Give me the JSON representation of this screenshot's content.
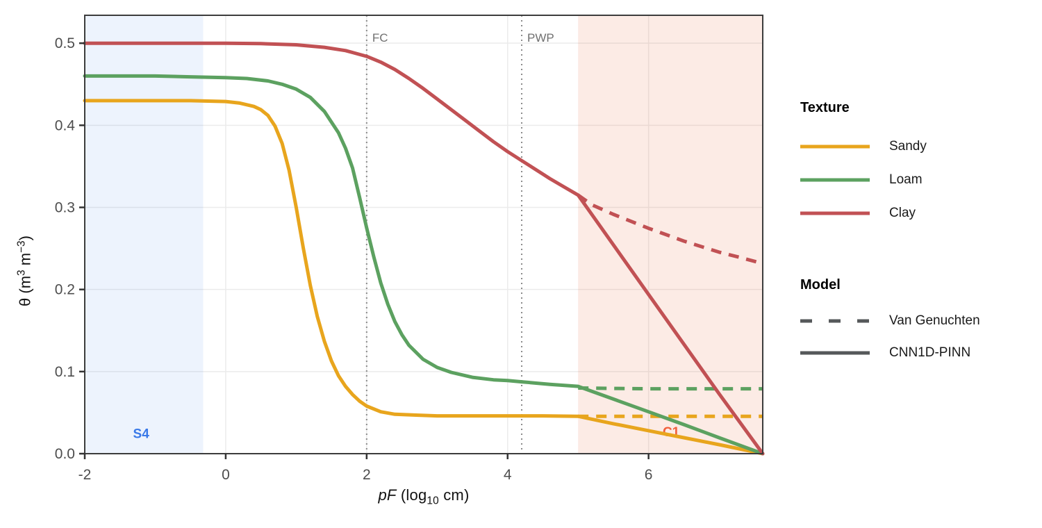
{
  "colors": {
    "background": "#ffffff",
    "panel_border": "#3c3c3c",
    "gridline": "#ebebeb",
    "tick_mark": "#333333",
    "tick_label": "#4d4d4d",
    "axis_title": "#111111",
    "sandy": "#e8a51d",
    "loam": "#5ca160",
    "clay": "#c15154",
    "model_key": "#55585a",
    "refline": "#8a8a8a",
    "refline_label": "#707070",
    "region_blue_base": "#3a79e8",
    "region_orange_base": "#e8622c"
  },
  "legend": {
    "texture": {
      "title": "Texture",
      "items": [
        {
          "label": "Sandy",
          "color": "#e8a51d",
          "dashed": false
        },
        {
          "label": "Loam",
          "color": "#5ca160",
          "dashed": false
        },
        {
          "label": "Clay",
          "color": "#c15154",
          "dashed": false
        }
      ]
    },
    "model": {
      "title": "Model",
      "key_color": "#55585a",
      "items": [
        {
          "label": "Van Genuchten",
          "dashed": true
        },
        {
          "label": "CNN1D-PINN",
          "dashed": false
        }
      ]
    }
  },
  "chart_data": {
    "type": "line",
    "title": "",
    "xlabel": {
      "italic": "pF",
      "pre": " (log",
      "sub": "10",
      "post": " cm)"
    },
    "ylabel": {
      "a": "θ (m",
      "sup1": "3",
      "b": " m",
      "sup2": "−3",
      "c": ")"
    },
    "xlim": [
      -2,
      7.62
    ],
    "ylim": [
      0,
      0.534
    ],
    "grid": true,
    "legend_position": "right",
    "x_ticks": [
      {
        "v": -2,
        "label": "-2"
      },
      {
        "v": 0,
        "label": "0"
      },
      {
        "v": 2,
        "label": "2"
      },
      {
        "v": 4,
        "label": "4"
      },
      {
        "v": 6,
        "label": "6"
      }
    ],
    "y_ticks": [
      {
        "v": 0.0,
        "label": "0.0"
      },
      {
        "v": 0.1,
        "label": "0.1"
      },
      {
        "v": 0.2,
        "label": "0.2"
      },
      {
        "v": 0.3,
        "label": "0.3"
      },
      {
        "v": 0.4,
        "label": "0.4"
      },
      {
        "v": 0.5,
        "label": "0.5"
      }
    ],
    "vlines": [
      {
        "x": 2.0,
        "label": "FC"
      },
      {
        "x": 4.2,
        "label": "PWP"
      }
    ],
    "regions": [
      {
        "name": "S4",
        "x0": -2.0,
        "x1": -0.32,
        "base_color": "#3a79e8",
        "alpha": 0.09,
        "label": "S4",
        "label_color": "#3a79e8",
        "label_x": -1.2,
        "label_y": 0.025
      },
      {
        "name": "C1",
        "x0": 5.0,
        "x1": 7.62,
        "base_color": "#e8622c",
        "alpha": 0.125,
        "label": "C1",
        "label_color": "#f25f3b",
        "label_x": 6.32,
        "label_y": 0.027
      }
    ],
    "series": [
      {
        "name": "Sandy",
        "model": "CNN1D-PINN",
        "color": "#e8a51d",
        "dashed": false,
        "points": [
          [
            -2,
            0.43
          ],
          [
            -1.5,
            0.43
          ],
          [
            -1,
            0.43
          ],
          [
            -0.5,
            0.43
          ],
          [
            0,
            0.429
          ],
          [
            0.2,
            0.427
          ],
          [
            0.4,
            0.423
          ],
          [
            0.5,
            0.419
          ],
          [
            0.6,
            0.412
          ],
          [
            0.7,
            0.399
          ],
          [
            0.8,
            0.378
          ],
          [
            0.9,
            0.345
          ],
          [
            1,
            0.3
          ],
          [
            1.1,
            0.251
          ],
          [
            1.2,
            0.205
          ],
          [
            1.3,
            0.167
          ],
          [
            1.4,
            0.137
          ],
          [
            1.5,
            0.113
          ],
          [
            1.6,
            0.095
          ],
          [
            1.7,
            0.082
          ],
          [
            1.8,
            0.072
          ],
          [
            1.9,
            0.064
          ],
          [
            2,
            0.058
          ],
          [
            2.2,
            0.051
          ],
          [
            2.4,
            0.048
          ],
          [
            2.7,
            0.047
          ],
          [
            3,
            0.046
          ],
          [
            3.5,
            0.046
          ],
          [
            4,
            0.046
          ],
          [
            4.5,
            0.046
          ],
          [
            5,
            0.0455
          ],
          [
            5.5,
            0.0365
          ],
          [
            6,
            0.028
          ],
          [
            6.5,
            0.0195
          ],
          [
            7,
            0.011
          ],
          [
            7.62,
            0
          ]
        ]
      },
      {
        "name": "Sandy",
        "model": "Van Genuchten",
        "color": "#e8a51d",
        "dashed": true,
        "points": [
          [
            5,
            0.0455
          ],
          [
            5.5,
            0.0455
          ],
          [
            6,
            0.0455
          ],
          [
            6.5,
            0.0455
          ],
          [
            7,
            0.0455
          ],
          [
            7.62,
            0.0455
          ]
        ]
      },
      {
        "name": "Loam",
        "model": "CNN1D-PINN",
        "color": "#5ca160",
        "dashed": false,
        "points": [
          [
            -2,
            0.46
          ],
          [
            -1.5,
            0.46
          ],
          [
            -1,
            0.46
          ],
          [
            -0.5,
            0.459
          ],
          [
            0,
            0.458
          ],
          [
            0.3,
            0.457
          ],
          [
            0.6,
            0.454
          ],
          [
            0.8,
            0.45
          ],
          [
            1,
            0.444
          ],
          [
            1.2,
            0.434
          ],
          [
            1.4,
            0.417
          ],
          [
            1.6,
            0.391
          ],
          [
            1.7,
            0.372
          ],
          [
            1.8,
            0.348
          ],
          [
            1.9,
            0.312
          ],
          [
            2,
            0.275
          ],
          [
            2.1,
            0.24
          ],
          [
            2.2,
            0.208
          ],
          [
            2.3,
            0.182
          ],
          [
            2.4,
            0.161
          ],
          [
            2.5,
            0.145
          ],
          [
            2.6,
            0.132
          ],
          [
            2.8,
            0.115
          ],
          [
            3,
            0.105
          ],
          [
            3.2,
            0.099
          ],
          [
            3.5,
            0.093
          ],
          [
            3.8,
            0.09
          ],
          [
            4,
            0.089
          ],
          [
            4.2,
            0.0875
          ],
          [
            4.6,
            0.0845
          ],
          [
            5,
            0.082
          ],
          [
            5.5,
            0.0665
          ],
          [
            6,
            0.051
          ],
          [
            6.5,
            0.0355
          ],
          [
            7,
            0.0195
          ],
          [
            7.62,
            0
          ]
        ]
      },
      {
        "name": "Loam",
        "model": "Van Genuchten",
        "color": "#5ca160",
        "dashed": true,
        "points": [
          [
            5,
            0.08
          ],
          [
            5.5,
            0.0795
          ],
          [
            6,
            0.079
          ],
          [
            6.5,
            0.079
          ],
          [
            7,
            0.079
          ],
          [
            7.62,
            0.079
          ]
        ]
      },
      {
        "name": "Clay",
        "model": "CNN1D-PINN",
        "color": "#c15154",
        "dashed": false,
        "points": [
          [
            -2,
            0.5
          ],
          [
            -1,
            0.5
          ],
          [
            0,
            0.5
          ],
          [
            0.5,
            0.4995
          ],
          [
            1,
            0.498
          ],
          [
            1.4,
            0.495
          ],
          [
            1.7,
            0.491
          ],
          [
            2,
            0.484
          ],
          [
            2.2,
            0.477
          ],
          [
            2.4,
            0.468
          ],
          [
            2.6,
            0.457
          ],
          [
            2.8,
            0.445
          ],
          [
            3,
            0.432
          ],
          [
            3.2,
            0.419
          ],
          [
            3.4,
            0.406
          ],
          [
            3.6,
            0.393
          ],
          [
            3.8,
            0.38
          ],
          [
            4,
            0.368
          ],
          [
            4.2,
            0.357
          ],
          [
            4.4,
            0.346
          ],
          [
            4.6,
            0.335
          ],
          [
            4.8,
            0.325
          ],
          [
            5,
            0.315
          ],
          [
            5.5,
            0.2545
          ],
          [
            6,
            0.194
          ],
          [
            6.5,
            0.1335
          ],
          [
            7,
            0.073
          ],
          [
            7.62,
            0
          ]
        ]
      },
      {
        "name": "Clay",
        "model": "Van Genuchten",
        "color": "#c15154",
        "dashed": true,
        "points": [
          [
            5,
            0.315
          ],
          [
            5.2,
            0.303
          ],
          [
            5.5,
            0.2915
          ],
          [
            6,
            0.2745
          ],
          [
            6.5,
            0.259
          ],
          [
            7,
            0.2455
          ],
          [
            7.3,
            0.239
          ],
          [
            7.62,
            0.2315
          ]
        ]
      }
    ]
  }
}
